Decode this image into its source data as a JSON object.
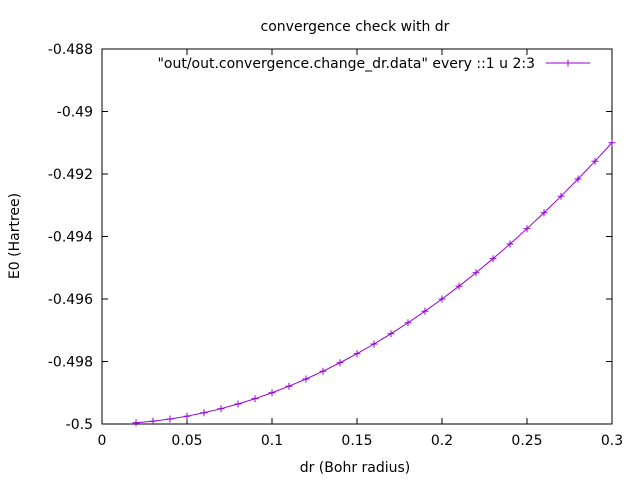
{
  "chart_data": {
    "type": "line",
    "title": "convergence check with dr",
    "xlabel": "dr (Bohr radius)",
    "ylabel": "E0 (Hartree)",
    "xlim": [
      0,
      0.3
    ],
    "ylim": [
      -0.5,
      -0.488
    ],
    "x_ticks": [
      0,
      0.05,
      0.1,
      0.15,
      0.2,
      0.25,
      0.3
    ],
    "x_tick_labels": [
      "0",
      "0.05",
      "0.1",
      "0.15",
      "0.2",
      "0.25",
      "0.3"
    ],
    "y_ticks": [
      -0.5,
      -0.498,
      -0.496,
      -0.494,
      -0.492,
      -0.49,
      -0.488
    ],
    "y_tick_labels": [
      "-0.5",
      "-0.498",
      "-0.496",
      "-0.494",
      "-0.492",
      "-0.49",
      "-0.488"
    ],
    "grid": false,
    "legend_position": "top-right",
    "series": [
      {
        "name": "\"out/out.convergence.change_dr.data\" every ::1 u 2:3",
        "color": "#9400d3",
        "marker": "plus",
        "x": [
          0.02,
          0.03,
          0.04,
          0.05,
          0.06,
          0.07,
          0.08,
          0.09,
          0.1,
          0.11,
          0.12,
          0.13,
          0.14,
          0.15,
          0.16,
          0.17,
          0.18,
          0.19,
          0.2,
          0.21,
          0.22,
          0.23,
          0.24,
          0.25,
          0.26,
          0.27,
          0.28,
          0.29,
          0.3
        ],
        "y": [
          -0.49996,
          -0.49991,
          -0.49984,
          -0.49975,
          -0.49964,
          -0.49951,
          -0.49936,
          -0.49919,
          -0.499,
          -0.49879,
          -0.49856,
          -0.49831,
          -0.49804,
          -0.49775,
          -0.49744,
          -0.49711,
          -0.49676,
          -0.49639,
          -0.496,
          -0.49559,
          -0.49516,
          -0.49471,
          -0.49424,
          -0.49375,
          -0.49324,
          -0.49271,
          -0.49216,
          -0.49159,
          -0.491
        ]
      }
    ]
  }
}
